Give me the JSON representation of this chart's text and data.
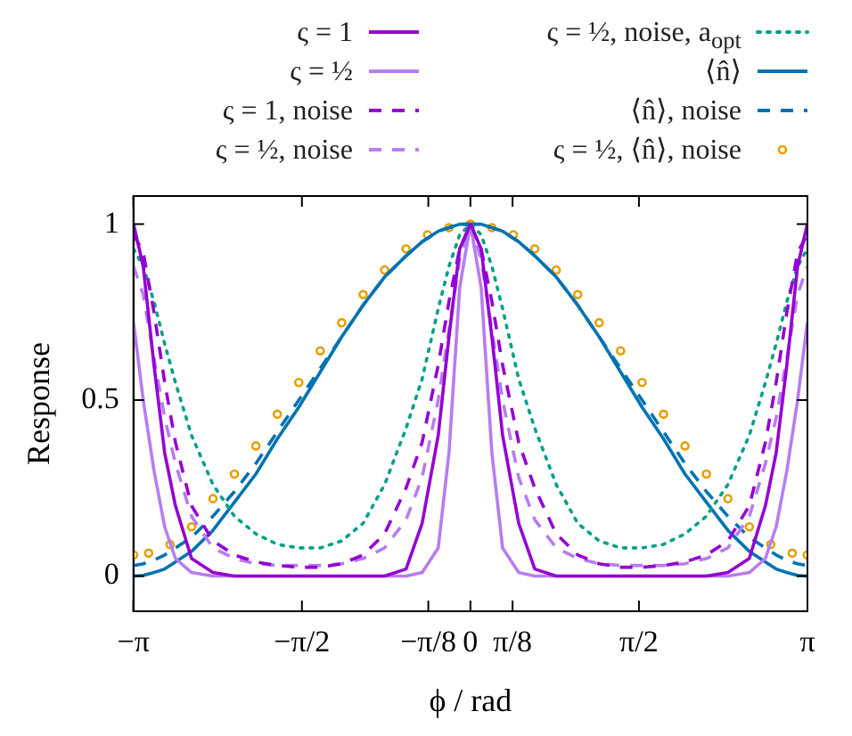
{
  "chart_data": {
    "type": "line",
    "xlabel": "ϕ / rad",
    "ylabel": "Response",
    "x": [
      -3.14,
      -3.05,
      -2.95,
      -2.85,
      -2.75,
      -2.6,
      -2.4,
      -2.2,
      -2.0,
      -1.8,
      -1.6,
      -1.4,
      -1.2,
      -1.0,
      -0.8,
      -0.6,
      -0.45,
      -0.3,
      -0.2,
      -0.1,
      0,
      0.1,
      0.2,
      0.3,
      0.45,
      0.6,
      0.8,
      1.0,
      1.2,
      1.4,
      1.6,
      1.8,
      2.0,
      2.2,
      2.4,
      2.6,
      2.75,
      2.85,
      2.95,
      3.05,
      3.14
    ],
    "series": [
      {
        "name": "ς = 1",
        "color": "#9400d3",
        "line_style": "solid",
        "values": [
          1,
          0.88,
          0.6,
          0.35,
          0.2,
          0.05,
          0.01,
          0,
          0,
          0,
          0,
          0,
          0,
          0,
          0,
          0.02,
          0.15,
          0.4,
          0.68,
          0.93,
          1,
          0.93,
          0.68,
          0.4,
          0.15,
          0.02,
          0,
          0,
          0,
          0,
          0,
          0,
          0,
          0,
          0.01,
          0.05,
          0.2,
          0.35,
          0.6,
          0.88,
          1
        ]
      },
      {
        "name": "ς = ½",
        "color": "#b77cf2",
        "line_style": "solid",
        "values": [
          0.72,
          0.5,
          0.3,
          0.14,
          0.05,
          0.01,
          0,
          0,
          0,
          0,
          0,
          0,
          0,
          0,
          0,
          0,
          0.01,
          0.08,
          0.35,
          0.82,
          1,
          0.82,
          0.35,
          0.08,
          0.01,
          0,
          0,
          0,
          0,
          0,
          0,
          0,
          0,
          0,
          0,
          0.01,
          0.05,
          0.14,
          0.3,
          0.5,
          0.72
        ]
      },
      {
        "name": "ς = 1, noise",
        "color": "#9400d3",
        "line_style": "dashed",
        "values": [
          0.97,
          0.92,
          0.75,
          0.55,
          0.38,
          0.2,
          0.1,
          0.06,
          0.04,
          0.03,
          0.025,
          0.025,
          0.035,
          0.06,
          0.12,
          0.25,
          0.38,
          0.6,
          0.78,
          0.93,
          1,
          0.93,
          0.78,
          0.6,
          0.38,
          0.25,
          0.12,
          0.06,
          0.035,
          0.025,
          0.025,
          0.03,
          0.04,
          0.06,
          0.1,
          0.2,
          0.38,
          0.55,
          0.75,
          0.92,
          0.97
        ]
      },
      {
        "name": "ς = ½, noise",
        "color": "#b77cf2",
        "line_style": "dashed",
        "values": [
          0.88,
          0.8,
          0.62,
          0.45,
          0.32,
          0.17,
          0.08,
          0.05,
          0.035,
          0.03,
          0.03,
          0.03,
          0.035,
          0.05,
          0.08,
          0.16,
          0.28,
          0.5,
          0.7,
          0.9,
          1,
          0.9,
          0.7,
          0.5,
          0.28,
          0.16,
          0.08,
          0.05,
          0.035,
          0.03,
          0.03,
          0.03,
          0.035,
          0.05,
          0.08,
          0.17,
          0.32,
          0.45,
          0.62,
          0.8,
          0.88
        ]
      },
      {
        "name": "ς = ½, noise, a$_{opt}$",
        "color": "#00a087",
        "line_style": "dotted",
        "values": [
          0.93,
          0.88,
          0.78,
          0.66,
          0.55,
          0.4,
          0.26,
          0.17,
          0.12,
          0.09,
          0.08,
          0.08,
          0.1,
          0.15,
          0.26,
          0.42,
          0.56,
          0.76,
          0.88,
          0.97,
          1,
          0.97,
          0.88,
          0.76,
          0.56,
          0.42,
          0.26,
          0.15,
          0.1,
          0.08,
          0.08,
          0.09,
          0.12,
          0.17,
          0.26,
          0.4,
          0.55,
          0.66,
          0.78,
          0.88,
          0.93
        ]
      },
      {
        "name": "⟨n̂⟩",
        "color": "#0072b2",
        "line_style": "solid",
        "values": [
          0,
          0.002,
          0.01,
          0.02,
          0.04,
          0.07,
          0.13,
          0.21,
          0.29,
          0.39,
          0.48,
          0.58,
          0.68,
          0.77,
          0.85,
          0.91,
          0.95,
          0.98,
          0.99,
          1,
          1,
          1,
          0.99,
          0.98,
          0.95,
          0.91,
          0.85,
          0.77,
          0.68,
          0.58,
          0.48,
          0.39,
          0.29,
          0.21,
          0.13,
          0.07,
          0.04,
          0.02,
          0.01,
          0.002,
          0
        ]
      },
      {
        "name": "⟨n̂⟩, noise",
        "color": "#0072b2",
        "line_style": "dashed",
        "values": [
          0.03,
          0.035,
          0.045,
          0.06,
          0.08,
          0.11,
          0.17,
          0.24,
          0.32,
          0.41,
          0.5,
          0.59,
          0.68,
          0.77,
          0.85,
          0.91,
          0.95,
          0.98,
          0.99,
          1,
          1,
          1,
          0.99,
          0.98,
          0.95,
          0.91,
          0.85,
          0.77,
          0.68,
          0.59,
          0.5,
          0.41,
          0.32,
          0.24,
          0.17,
          0.11,
          0.08,
          0.06,
          0.045,
          0.035,
          0.03
        ]
      },
      {
        "name": "ς = ½, ⟨n̂⟩, noise",
        "color": "#e69f00",
        "type": "scatter",
        "marker": "circle",
        "x": [
          -3.14,
          -3.0,
          -2.8,
          -2.6,
          -2.4,
          -2.2,
          -2.0,
          -1.8,
          -1.6,
          -1.4,
          -1.2,
          -1.0,
          -0.8,
          -0.6,
          -0.4,
          -0.2,
          0,
          0.2,
          0.4,
          0.6,
          0.8,
          1.0,
          1.2,
          1.4,
          1.6,
          1.8,
          2.0,
          2.2,
          2.4,
          2.6,
          2.8,
          3.0,
          3.14
        ],
        "values": [
          0.06,
          0.065,
          0.09,
          0.14,
          0.22,
          0.29,
          0.37,
          0.46,
          0.55,
          0.64,
          0.72,
          0.8,
          0.87,
          0.93,
          0.97,
          0.99,
          1,
          0.99,
          0.97,
          0.93,
          0.87,
          0.8,
          0.72,
          0.64,
          0.55,
          0.46,
          0.37,
          0.29,
          0.22,
          0.14,
          0.09,
          0.065,
          0.06
        ]
      }
    ],
    "xlim": [
      -3.14159,
      3.14159
    ],
    "xticks": [
      {
        "value": -3.14159,
        "label": "−π"
      },
      {
        "value": -1.5708,
        "label": "−π/2"
      },
      {
        "value": -0.3927,
        "label": "−π/8"
      },
      0,
      {
        "value": 0.3927,
        "label": "π/8"
      },
      {
        "value": 1.5708,
        "label": "π/2"
      },
      {
        "value": 3.14159,
        "label": "π"
      }
    ],
    "ylim": [
      -0.1,
      1.08
    ],
    "yticks": [
      0,
      0.5,
      1
    ],
    "grid": false,
    "legend": "top",
    "marker": "none"
  }
}
